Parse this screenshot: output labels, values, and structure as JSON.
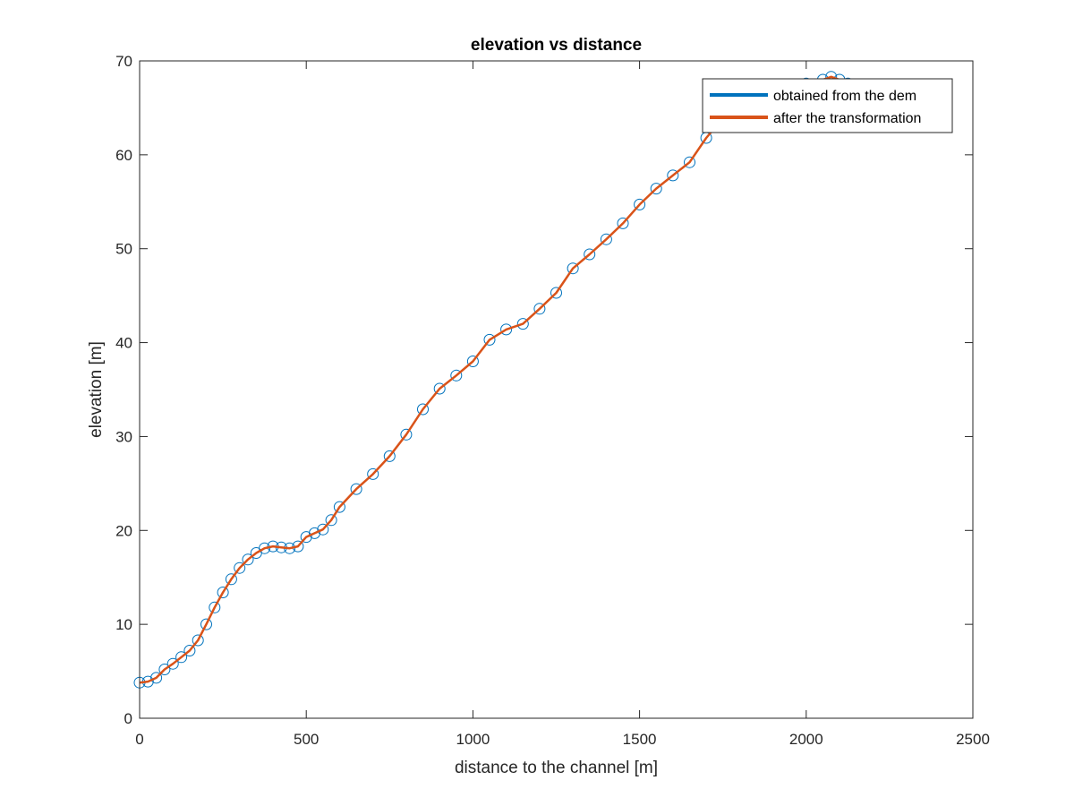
{
  "chart_data": {
    "type": "line",
    "title": "elevation vs distance",
    "xlabel": "distance to the channel [m]",
    "ylabel": "elevation [m]",
    "xlim": [
      0,
      2500
    ],
    "ylim": [
      0,
      70
    ],
    "xticks": [
      "0",
      "500",
      "1000",
      "1500",
      "2000",
      "2500"
    ],
    "yticks": [
      "0",
      "10",
      "20",
      "30",
      "40",
      "50",
      "60",
      "70"
    ],
    "grid": false,
    "legend_position": "top-right",
    "series": [
      {
        "name": "obtained from the dem",
        "color": "#0072BD",
        "marker": "circle",
        "x": [
          0,
          25,
          50,
          75,
          100,
          125,
          150,
          175,
          200,
          225,
          250,
          275,
          300,
          325,
          350,
          375,
          400,
          425,
          450,
          475,
          500,
          525,
          550,
          575,
          600,
          650,
          700,
          750,
          800,
          850,
          900,
          950,
          1000,
          1050,
          1100,
          1150,
          1200,
          1250,
          1300,
          1350,
          1400,
          1450,
          1500,
          1550,
          1600,
          1650,
          1700,
          1750,
          1800,
          1850,
          1900,
          1950,
          2000,
          2050,
          2075,
          2100,
          2125
        ],
        "y": [
          3.8,
          3.9,
          4.3,
          5.2,
          5.8,
          6.5,
          7.2,
          8.3,
          10.0,
          11.8,
          13.4,
          14.8,
          16.0,
          16.9,
          17.6,
          18.1,
          18.3,
          18.2,
          18.1,
          18.3,
          19.3,
          19.7,
          20.1,
          21.1,
          22.5,
          24.4,
          26.0,
          27.9,
          30.2,
          32.9,
          35.1,
          36.5,
          38.0,
          40.3,
          41.4,
          42.0,
          43.6,
          45.3,
          47.9,
          49.4,
          51.0,
          52.7,
          54.7,
          56.4,
          57.8,
          59.2,
          61.8,
          63.9,
          65.0,
          65.8,
          66.6,
          67.1,
          67.6,
          68.0,
          68.3,
          68.0,
          67.6
        ]
      },
      {
        "name": "after the transformation",
        "color": "#D95319",
        "marker": "none",
        "x": [
          0,
          25,
          50,
          75,
          100,
          125,
          150,
          175,
          200,
          225,
          250,
          275,
          300,
          325,
          350,
          375,
          400,
          425,
          450,
          475,
          500,
          525,
          550,
          575,
          600,
          650,
          700,
          750,
          800,
          850,
          900,
          950,
          1000,
          1050,
          1100,
          1150,
          1200,
          1250,
          1300,
          1350,
          1400,
          1450,
          1500,
          1550,
          1600,
          1650,
          1700,
          1750,
          1800,
          1850,
          1900,
          1950,
          2000,
          2050,
          2075,
          2100,
          2125
        ],
        "y": [
          3.8,
          3.9,
          4.3,
          5.2,
          5.8,
          6.5,
          7.2,
          8.3,
          10.0,
          11.8,
          13.4,
          14.8,
          16.0,
          16.9,
          17.6,
          18.1,
          18.3,
          18.2,
          18.1,
          18.3,
          19.3,
          19.7,
          20.1,
          21.1,
          22.5,
          24.4,
          26.0,
          27.9,
          30.2,
          32.9,
          35.1,
          36.5,
          38.0,
          40.3,
          41.4,
          42.0,
          43.6,
          45.3,
          47.9,
          49.4,
          51.0,
          52.7,
          54.7,
          56.4,
          57.8,
          59.2,
          61.8,
          63.9,
          65.0,
          65.8,
          66.6,
          67.1,
          67.6,
          68.0,
          68.3,
          68.0,
          67.6
        ]
      }
    ]
  }
}
